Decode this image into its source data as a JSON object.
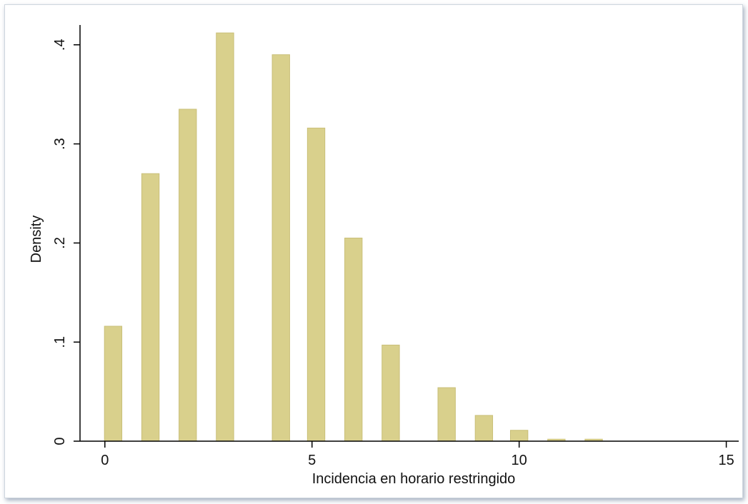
{
  "chart_data": {
    "type": "bar",
    "xlabel": "Incidencia en horario restringido",
    "ylabel": "Density",
    "xlim": [
      -0.6,
      15.3
    ],
    "ylim": [
      0,
      0.42
    ],
    "x_ticks": [
      0,
      5,
      10,
      15
    ],
    "x_tick_labels": [
      "0",
      "5",
      "10",
      "15"
    ],
    "y_ticks": [
      0,
      0.1,
      0.2,
      0.3,
      0.4
    ],
    "y_tick_labels": [
      "0",
      ".1",
      ".2",
      ".3",
      ".4"
    ],
    "bar_width": 0.42,
    "series": [
      {
        "x": [
          0.2,
          1.1,
          2.0,
          2.9,
          4.25,
          5.1,
          6.0,
          6.9,
          8.25,
          9.15,
          10.0,
          10.9,
          11.8
        ],
        "values": [
          0.116,
          0.27,
          0.335,
          0.412,
          0.39,
          0.316,
          0.205,
          0.097,
          0.054,
          0.026,
          0.011,
          0.002,
          0.002
        ]
      }
    ],
    "colors": {
      "bar_fill": "#d9d08c",
      "bar_stroke": "#c9bf78",
      "axis": "#000000",
      "frame_border": "#cfd6de"
    },
    "grid": false
  }
}
